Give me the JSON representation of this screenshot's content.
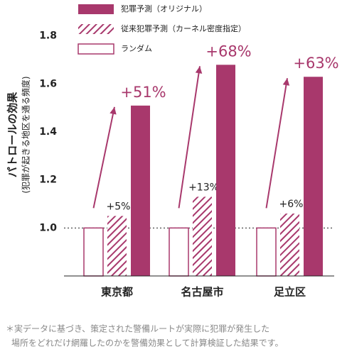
{
  "chart_data": {
    "type": "bar",
    "y_label": "パトロールの効果",
    "y_sublabel": "(犯罪が起きる地区を通る頻度)",
    "categories": [
      "東京都",
      "名古屋市",
      "足立区"
    ],
    "series": [
      {
        "name": "ランダム",
        "color": "#a8386c",
        "style": "outline",
        "values": [
          1.0,
          1.0,
          1.0
        ]
      },
      {
        "name": "従来犯罪予測（カーネル密度指定）",
        "color": "#a8386c",
        "style": "hatch",
        "values": [
          1.05,
          1.13,
          1.06
        ],
        "annotations": [
          "+5%",
          "+13%",
          "+6%"
        ]
      },
      {
        "name": "犯罪予測（オリジナル）",
        "color": "#a8386c",
        "style": "solid",
        "values": [
          1.51,
          1.68,
          1.63
        ],
        "annotations": [
          "+51%",
          "+68%",
          "+63%"
        ]
      }
    ],
    "ylim": [
      0.8,
      1.95
    ],
    "yticks": [
      {
        "value": 1.0,
        "label": "1.0"
      },
      {
        "value": 1.2,
        "label": "1.2"
      },
      {
        "value": 1.4,
        "label": "1.4"
      },
      {
        "value": 1.6,
        "label": "1.6"
      },
      {
        "value": 1.8,
        "label": "1.8"
      }
    ],
    "reference_line": 1.0,
    "footnote": [
      "＊実データに基づき、策定された警備ルートが実際に犯罪が発生した",
      "場所をどれだけ網羅したのかを警備効果として計算検証した結果です。"
    ]
  }
}
